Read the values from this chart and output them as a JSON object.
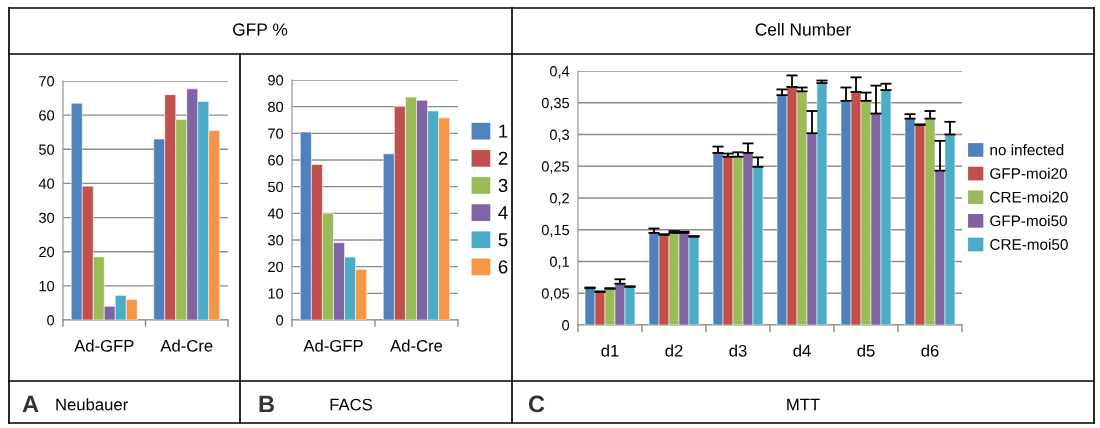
{
  "chart_data": [
    {
      "type": "bar",
      "title": "GFP %",
      "categories": [
        "Ad-GFP",
        "Ad-Cre"
      ],
      "ylim": [
        0,
        70
      ],
      "yticks": [
        0,
        10,
        20,
        30,
        40,
        50,
        60,
        70
      ],
      "grid": "y",
      "legend": false,
      "annotations": [
        "A",
        "Neubauer"
      ],
      "series": [
        {
          "color": "#4f81bd",
          "values": [
            63.5,
            53
          ]
        },
        {
          "color": "#c0504d",
          "values": [
            39.2,
            66
          ]
        },
        {
          "color": "#9bbb59",
          "values": [
            18.5,
            58.7
          ]
        },
        {
          "color": "#8064a2",
          "values": [
            4,
            67.7
          ]
        },
        {
          "color": "#4bacc6",
          "values": [
            7.2,
            64
          ]
        },
        {
          "color": "#f79646",
          "values": [
            6,
            55.5
          ]
        }
      ]
    },
    {
      "type": "bar",
      "categories": [
        "Ad-GFP",
        "Ad-Cre"
      ],
      "ylim": [
        0,
        90
      ],
      "yticks": [
        0,
        10,
        20,
        30,
        40,
        50,
        60,
        70,
        80,
        90
      ],
      "grid": "y",
      "legend": "right",
      "annotations": [
        "B",
        "FACS"
      ],
      "series": [
        {
          "name": "1",
          "color": "#4f81bd",
          "values": [
            70.5,
            62.3
          ]
        },
        {
          "name": "2",
          "color": "#c0504d",
          "values": [
            58.3,
            80
          ]
        },
        {
          "name": "3",
          "color": "#9bbb59",
          "values": [
            40,
            83.6
          ]
        },
        {
          "name": "4",
          "color": "#8064a2",
          "values": [
            29,
            82.4
          ]
        },
        {
          "name": "5",
          "color": "#4bacc6",
          "values": [
            23.6,
            78.4
          ]
        },
        {
          "name": "6",
          "color": "#f79646",
          "values": [
            19,
            75.8
          ]
        }
      ]
    },
    {
      "type": "bar",
      "title": "Cell Number",
      "categories": [
        "d1",
        "d2",
        "d3",
        "d4",
        "d5",
        "d6"
      ],
      "ylim": [
        0,
        0.4
      ],
      "yticks": [
        0,
        {
          "value": 0.05,
          "label": "0,05"
        },
        {
          "value": 0.1,
          "label": "0,1"
        },
        {
          "value": 0.15,
          "label": "0,15"
        },
        {
          "value": 0.2,
          "label": "0,2"
        },
        {
          "value": 0.25,
          "label": "0,25"
        },
        {
          "value": 0.3,
          "label": "0,3"
        },
        {
          "value": 0.35,
          "label": "0,35"
        },
        {
          "value": 0.4,
          "label": "0,4"
        }
      ],
      "grid": "y",
      "legend": "right",
      "annotations": [
        "C",
        "MTT"
      ],
      "series": [
        {
          "name": "no infected",
          "color": "#4f81bd",
          "values": [
            0.058,
            0.145,
            0.271,
            0.362,
            0.353,
            0.325
          ],
          "errors": [
            [
              0.058,
              0.059
            ],
            [
              0.145,
              0.152
            ],
            [
              0.271,
              0.281
            ],
            [
              0.362,
              0.371
            ],
            [
              0.353,
              0.374
            ],
            [
              0.325,
              0.332
            ]
          ]
        },
        {
          "name": "GFP-moi20",
          "color": "#c0504d",
          "values": [
            0.052,
            0.142,
            0.265,
            0.375,
            0.367,
            0.315
          ],
          "errors": [
            [
              0.052,
              0.053
            ],
            [
              0.142,
              0.143
            ],
            [
              0.265,
              0.27
            ],
            [
              0.375,
              0.393
            ],
            [
              0.367,
              0.39
            ],
            [
              0.315,
              0.316
            ]
          ]
        },
        {
          "name": "CRE-moi20",
          "color": "#9bbb59",
          "values": [
            0.057,
            0.145,
            0.265,
            0.368,
            0.353,
            0.325
          ],
          "errors": [
            [
              0.057,
              0.058
            ],
            [
              0.145,
              0.148
            ],
            [
              0.265,
              0.272
            ],
            [
              0.368,
              0.374
            ],
            [
              0.353,
              0.366
            ],
            [
              0.325,
              0.337
            ]
          ]
        },
        {
          "name": "GFP-moi50",
          "color": "#8064a2",
          "values": [
            0.065,
            0.145,
            0.271,
            0.302,
            0.333,
            0.243
          ],
          "errors": [
            [
              0.065,
              0.072
            ],
            [
              0.145,
              0.147
            ],
            [
              0.271,
              0.286
            ],
            [
              0.302,
              0.337
            ],
            [
              0.333,
              0.377
            ],
            [
              0.243,
              0.29
            ]
          ]
        },
        {
          "name": "CRE-moi50",
          "color": "#4bacc6",
          "values": [
            0.06,
            0.139,
            0.249,
            0.381,
            0.37,
            0.3
          ],
          "errors": [
            [
              0.06,
              0.061
            ],
            [
              0.139,
              0.14
            ],
            [
              0.249,
              0.264
            ],
            [
              0.381,
              0.385
            ],
            [
              0.37,
              0.38
            ],
            [
              0.3,
              0.32
            ]
          ]
        }
      ]
    }
  ]
}
